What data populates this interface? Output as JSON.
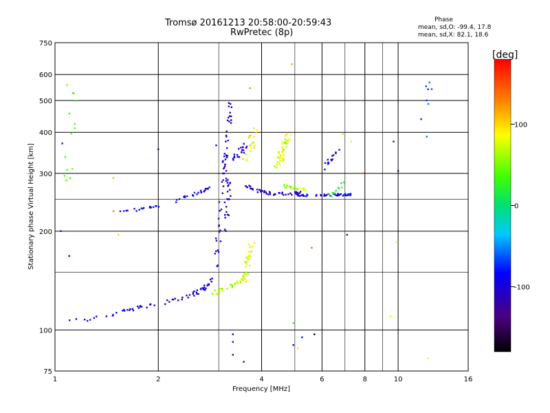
{
  "header": {
    "title_line1": "Tromsø 20161213 20:58:00-20:59:43",
    "title_line2": "RwPretec (8p)",
    "stats_title": "Phase",
    "stats_o": "mean, sd,O: -99.4, 17.8",
    "stats_x": "mean, sd,X:  82.1, 18.6"
  },
  "colorbar": {
    "unit_label": "[deg]",
    "tick_labels": [
      "100",
      "0",
      "-100"
    ],
    "tick_values": [
      100,
      0,
      -100
    ],
    "range": [
      -180,
      180
    ]
  },
  "chart_data": {
    "type": "scatter",
    "xlabel": "Frequency [MHz]",
    "ylabel": "Stationary phase Virtual Height [km]",
    "x_scale": "log",
    "y_scale": "log",
    "xlim": [
      1,
      16
    ],
    "ylim": [
      75,
      750
    ],
    "x_ticks": [
      1,
      2,
      4,
      6,
      8,
      10,
      16
    ],
    "x_tick_labels": [
      "1",
      "2",
      "4",
      "6",
      "8",
      "10",
      "16"
    ],
    "x_minor_ticks": [
      3,
      5,
      7,
      9
    ],
    "y_ticks": [
      75,
      100,
      200,
      300,
      400,
      500,
      600,
      750
    ],
    "y_tick_labels": [
      "75",
      "100",
      "200",
      "300",
      "400",
      "500",
      "600",
      "750"
    ],
    "y_minor_ticks": [
      150,
      250
    ],
    "grid": true,
    "color_by": "phase (deg)",
    "traces": [
      {
        "x": [
          1.0,
          1.3,
          1.6,
          1.9,
          2.2,
          2.5,
          2.7,
          2.85,
          2.95,
          3.0
        ],
        "y": [
          107,
          108,
          114,
          119,
          123,
          128,
          133,
          140,
          155,
          180
        ],
        "phase": -105,
        "n": 70,
        "spread": 0.03
      },
      {
        "x": [
          2.95,
          3.05,
          3.1,
          3.15
        ],
        "y": [
          170,
          220,
          290,
          340
        ],
        "phase": -115,
        "n": 30,
        "spread": 0.04
      },
      {
        "x": [
          3.1,
          3.2,
          3.25
        ],
        "y": [
          300,
          380,
          500
        ],
        "phase": -112,
        "n": 25,
        "spread": 0.03
      },
      {
        "x": [
          1.5,
          1.8,
          2.1,
          2.4,
          2.65,
          2.8
        ],
        "y": [
          230,
          233,
          240,
          255,
          262,
          270
        ],
        "phase": -100,
        "n": 40,
        "spread": 0.02
      },
      {
        "x": [
          3.15,
          3.2,
          3.22
        ],
        "y": [
          200,
          250,
          290
        ],
        "phase": -115,
        "n": 20,
        "spread": 0.03
      },
      {
        "x": [
          2.9,
          3.1,
          3.3,
          3.5,
          3.6
        ],
        "y": [
          130,
          133,
          137,
          142,
          150
        ],
        "phase": 70,
        "n": 35,
        "spread": 0.03
      },
      {
        "x": [
          3.55,
          3.65,
          3.75
        ],
        "y": [
          140,
          160,
          185
        ],
        "phase": 75,
        "n": 30,
        "spread": 0.04
      },
      {
        "x": [
          3.5,
          3.9,
          4.3,
          4.8,
          5.2
        ],
        "y": [
          280,
          265,
          260,
          260,
          262
        ],
        "phase": -110,
        "n": 45,
        "spread": 0.02
      },
      {
        "x": [
          5.0,
          5.5,
          6.0,
          6.5,
          7.0,
          7.3
        ],
        "y": [
          258,
          257,
          258,
          258,
          258,
          258
        ],
        "phase": -95,
        "n": 45,
        "spread": 0.015
      },
      {
        "x": [
          4.4,
          4.6,
          4.8
        ],
        "y": [
          310,
          345,
          390
        ],
        "phase": 75,
        "n": 45,
        "spread": 0.05
      },
      {
        "x": [
          4.6,
          5.0,
          5.4
        ],
        "y": [
          275,
          270,
          268
        ],
        "phase": 68,
        "n": 25,
        "spread": 0.02
      },
      {
        "x": [
          3.3,
          3.45,
          3.6
        ],
        "y": [
          330,
          345,
          365
        ],
        "phase": -110,
        "n": 20,
        "spread": 0.04
      },
      {
        "x": [
          3.6,
          3.75,
          3.8
        ],
        "y": [
          330,
          370,
          420
        ],
        "phase": 88,
        "n": 22,
        "spread": 0.05
      },
      {
        "x": [
          6.1,
          6.4,
          6.7
        ],
        "y": [
          310,
          335,
          360
        ],
        "phase": -105,
        "n": 14,
        "spread": 0.05
      },
      {
        "x": [
          6.3,
          6.6,
          6.9
        ],
        "y": [
          255,
          265,
          280
        ],
        "phase": 25,
        "n": 12,
        "spread": 0.03
      },
      {
        "x": [
          1.08,
          1.1,
          1.12
        ],
        "y": [
          260,
          420,
          580
        ],
        "phase": 35,
        "n": 14,
        "spread": 0.08
      },
      {
        "x": [
          12.0,
          12.1,
          12.2
        ],
        "y": [
          380,
          480,
          600
        ],
        "phase": -70,
        "n": 8,
        "spread": 0.08
      }
    ],
    "scattered_points": [
      {
        "x": 1.04,
        "y": 200,
        "phase": -125
      },
      {
        "x": 1.05,
        "y": 370,
        "phase": -115
      },
      {
        "x": 1.48,
        "y": 290,
        "phase": 110
      },
      {
        "x": 1.48,
        "y": 230,
        "phase": 130
      },
      {
        "x": 1.53,
        "y": 195,
        "phase": 100
      },
      {
        "x": 1.55,
        "y": 230,
        "phase": -120
      },
      {
        "x": 2.0,
        "y": 355,
        "phase": -120
      },
      {
        "x": 1.1,
        "y": 168,
        "phase": -115
      },
      {
        "x": 2.95,
        "y": 365,
        "phase": -95
      },
      {
        "x": 3.7,
        "y": 545,
        "phase": 130
      },
      {
        "x": 4.9,
        "y": 645,
        "phase": 115
      },
      {
        "x": 3.3,
        "y": 97,
        "phase": -130
      },
      {
        "x": 3.3,
        "y": 92,
        "phase": -105
      },
      {
        "x": 3.3,
        "y": 84,
        "phase": -125
      },
      {
        "x": 3.55,
        "y": 80,
        "phase": -110
      },
      {
        "x": 4.95,
        "y": 105,
        "phase": 30
      },
      {
        "x": 4.95,
        "y": 90,
        "phase": -100
      },
      {
        "x": 5.25,
        "y": 95,
        "phase": -90
      },
      {
        "x": 5.7,
        "y": 97,
        "phase": -170
      },
      {
        "x": 5.1,
        "y": 88,
        "phase": 100
      },
      {
        "x": 5.6,
        "y": 178,
        "phase": 140
      },
      {
        "x": 7.1,
        "y": 195,
        "phase": -150
      },
      {
        "x": 9.5,
        "y": 110,
        "phase": 90
      },
      {
        "x": 9.7,
        "y": 375,
        "phase": -110
      },
      {
        "x": 10.0,
        "y": 305,
        "phase": -150
      },
      {
        "x": 9.95,
        "y": 185,
        "phase": 110
      },
      {
        "x": 12.2,
        "y": 82,
        "phase": 90
      },
      {
        "x": 7.9,
        "y": 300,
        "phase": 150
      },
      {
        "x": 7.3,
        "y": 375,
        "phase": 75
      },
      {
        "x": 6.9,
        "y": 395,
        "phase": 60
      }
    ]
  }
}
